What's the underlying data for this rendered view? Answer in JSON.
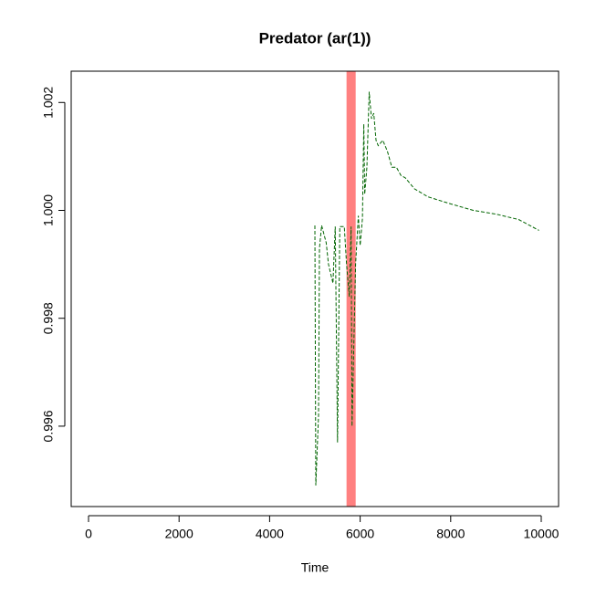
{
  "chart_data": {
    "type": "line",
    "title": "Predator (ar(1))",
    "x_label": "Time",
    "x": [
      5000,
      5020,
      5080,
      5100,
      5150,
      5250,
      5300,
      5400,
      5450,
      5500,
      5550,
      5650,
      5700,
      5760,
      5800,
      5820,
      5900,
      5960,
      6000,
      6050,
      6080,
      6100,
      6150,
      6200,
      6250,
      6300,
      6350,
      6400,
      6500,
      6600,
      6700,
      6800,
      6900,
      7000,
      7200,
      7500,
      8000,
      8500,
      9000,
      9500,
      9950
    ],
    "series": [
      {
        "color": "#006400",
        "values": [
          0.99972,
          0.9949,
          0.9962,
          0.9993,
          0.99972,
          0.9994,
          0.999,
          0.99865,
          0.9997,
          0.9957,
          0.9997,
          0.9997,
          0.999,
          0.9984,
          0.9997,
          0.996,
          0.999,
          0.9999,
          0.99935,
          0.99985,
          1.0016,
          1.0003,
          1.0008,
          1.0022,
          1.0017,
          1.0018,
          1.0013,
          1.0012,
          1.0013,
          1.0011,
          1.0008,
          1.0008,
          1.00065,
          1.0006,
          1.0004,
          1.00025,
          1.00012,
          1.0,
          0.99993,
          0.99983,
          0.99963
        ]
      }
    ],
    "vline": {
      "x": 5800,
      "color": "#ff8080"
    },
    "xlim": [
      -383,
      10383
    ],
    "xticks": [
      0,
      2000,
      4000,
      6000,
      8000,
      10000
    ],
    "ylim": [
      0.99451,
      1.00258
    ],
    "yticks": [
      {
        "value": 0.996,
        "label": "0.996"
      },
      {
        "value": 0.998,
        "label": "0.998"
      },
      {
        "value": 1.0,
        "label": "1.000"
      },
      {
        "value": 1.002,
        "label": "1.002"
      }
    ]
  }
}
